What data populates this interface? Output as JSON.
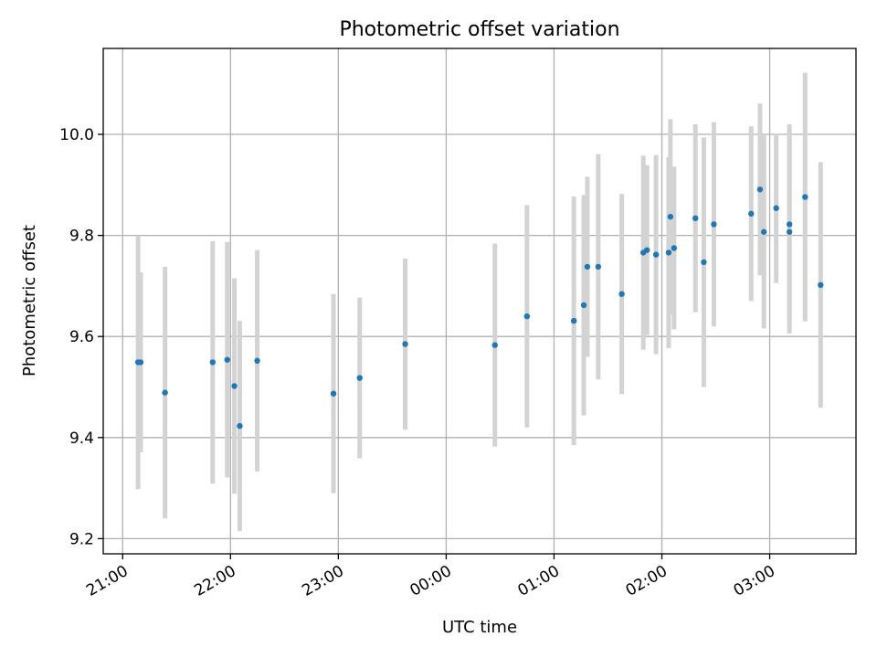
{
  "chart_data": {
    "type": "scatter",
    "title": "Photometric offset variation",
    "xlabel": "UTC time",
    "ylabel": "Photometric offset",
    "x_unit": "hours (UTC, relative to 21:00 on the first night)",
    "xlim": [
      -0.18,
      6.8
    ],
    "ylim": [
      9.17,
      10.17
    ],
    "x_ticks": [
      {
        "value": 0,
        "label": "21:00"
      },
      {
        "value": 1,
        "label": "22:00"
      },
      {
        "value": 2,
        "label": "23:00"
      },
      {
        "value": 3,
        "label": "00:00"
      },
      {
        "value": 4,
        "label": "01:00"
      },
      {
        "value": 5,
        "label": "02:00"
      },
      {
        "value": 6,
        "label": "03:00"
      }
    ],
    "y_ticks": [
      {
        "value": 9.2,
        "label": "9.2"
      },
      {
        "value": 9.4,
        "label": "9.4"
      },
      {
        "value": 9.6,
        "label": "9.6"
      },
      {
        "value": 9.8,
        "label": "9.8"
      },
      {
        "value": 10.0,
        "label": "10.0"
      }
    ],
    "grid": true,
    "point_color": "#1f77b4",
    "errorbar_color": "#d3d3d3",
    "points": [
      {
        "x": 0.143,
        "y": 9.549,
        "err": 0.251
      },
      {
        "x": 0.167,
        "y": 9.549,
        "err": 0.178
      },
      {
        "x": 0.393,
        "y": 9.489,
        "err": 0.249
      },
      {
        "x": 0.835,
        "y": 9.549,
        "err": 0.24
      },
      {
        "x": 0.97,
        "y": 9.554,
        "err": 0.233
      },
      {
        "x": 1.036,
        "y": 9.502,
        "err": 0.213
      },
      {
        "x": 1.086,
        "y": 9.423,
        "err": 0.208
      },
      {
        "x": 1.248,
        "y": 9.552,
        "err": 0.219
      },
      {
        "x": 1.955,
        "y": 9.487,
        "err": 0.197
      },
      {
        "x": 2.198,
        "y": 9.518,
        "err": 0.159
      },
      {
        "x": 2.62,
        "y": 9.585,
        "err": 0.169
      },
      {
        "x": 3.452,
        "y": 9.583,
        "err": 0.201
      },
      {
        "x": 3.749,
        "y": 9.64,
        "err": 0.22
      },
      {
        "x": 4.184,
        "y": 9.631,
        "err": 0.246
      },
      {
        "x": 4.276,
        "y": 9.662,
        "err": 0.218
      },
      {
        "x": 4.309,
        "y": 9.738,
        "err": 0.178
      },
      {
        "x": 4.41,
        "y": 9.738,
        "err": 0.223
      },
      {
        "x": 4.628,
        "y": 9.684,
        "err": 0.198
      },
      {
        "x": 4.828,
        "y": 9.766,
        "err": 0.192
      },
      {
        "x": 4.862,
        "y": 9.771,
        "err": 0.168
      },
      {
        "x": 4.946,
        "y": 9.762,
        "err": 0.197
      },
      {
        "x": 5.063,
        "y": 9.766,
        "err": 0.189
      },
      {
        "x": 5.079,
        "y": 9.837,
        "err": 0.193
      },
      {
        "x": 5.113,
        "y": 9.775,
        "err": 0.161
      },
      {
        "x": 5.311,
        "y": 9.834,
        "err": 0.186
      },
      {
        "x": 5.389,
        "y": 9.747,
        "err": 0.247
      },
      {
        "x": 5.482,
        "y": 9.822,
        "err": 0.202
      },
      {
        "x": 5.828,
        "y": 9.843,
        "err": 0.173
      },
      {
        "x": 5.91,
        "y": 9.891,
        "err": 0.17
      },
      {
        "x": 5.946,
        "y": 9.807,
        "err": 0.191
      },
      {
        "x": 6.06,
        "y": 9.854,
        "err": 0.148
      },
      {
        "x": 6.183,
        "y": 9.822,
        "err": 0.198
      },
      {
        "x": 6.183,
        "y": 9.807,
        "err": 0.201
      },
      {
        "x": 6.328,
        "y": 9.876,
        "err": 0.246
      },
      {
        "x": 6.472,
        "y": 9.702,
        "err": 0.243
      }
    ]
  }
}
